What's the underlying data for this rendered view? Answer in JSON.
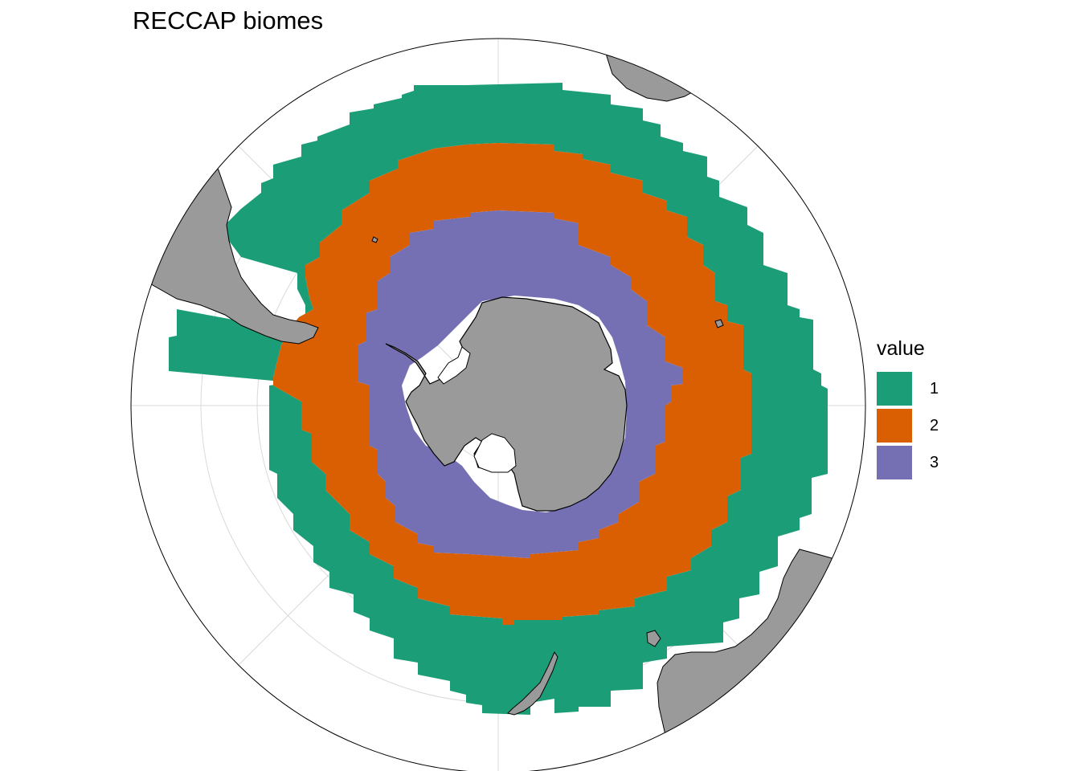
{
  "title": "RECCAP biomes",
  "legend": {
    "title": "value",
    "items": [
      {
        "label": "1",
        "color": "#1b9e77"
      },
      {
        "label": "2",
        "color": "#d95f02"
      },
      {
        "label": "3",
        "color": "#7570b3"
      }
    ]
  },
  "colors": {
    "land": "#9a9a9a",
    "graticule": "#d9d9d9",
    "border": "#000000",
    "ocean": "#ffffff"
  },
  "map": {
    "projection": "south-polar-stereographic",
    "graticule": true
  }
}
